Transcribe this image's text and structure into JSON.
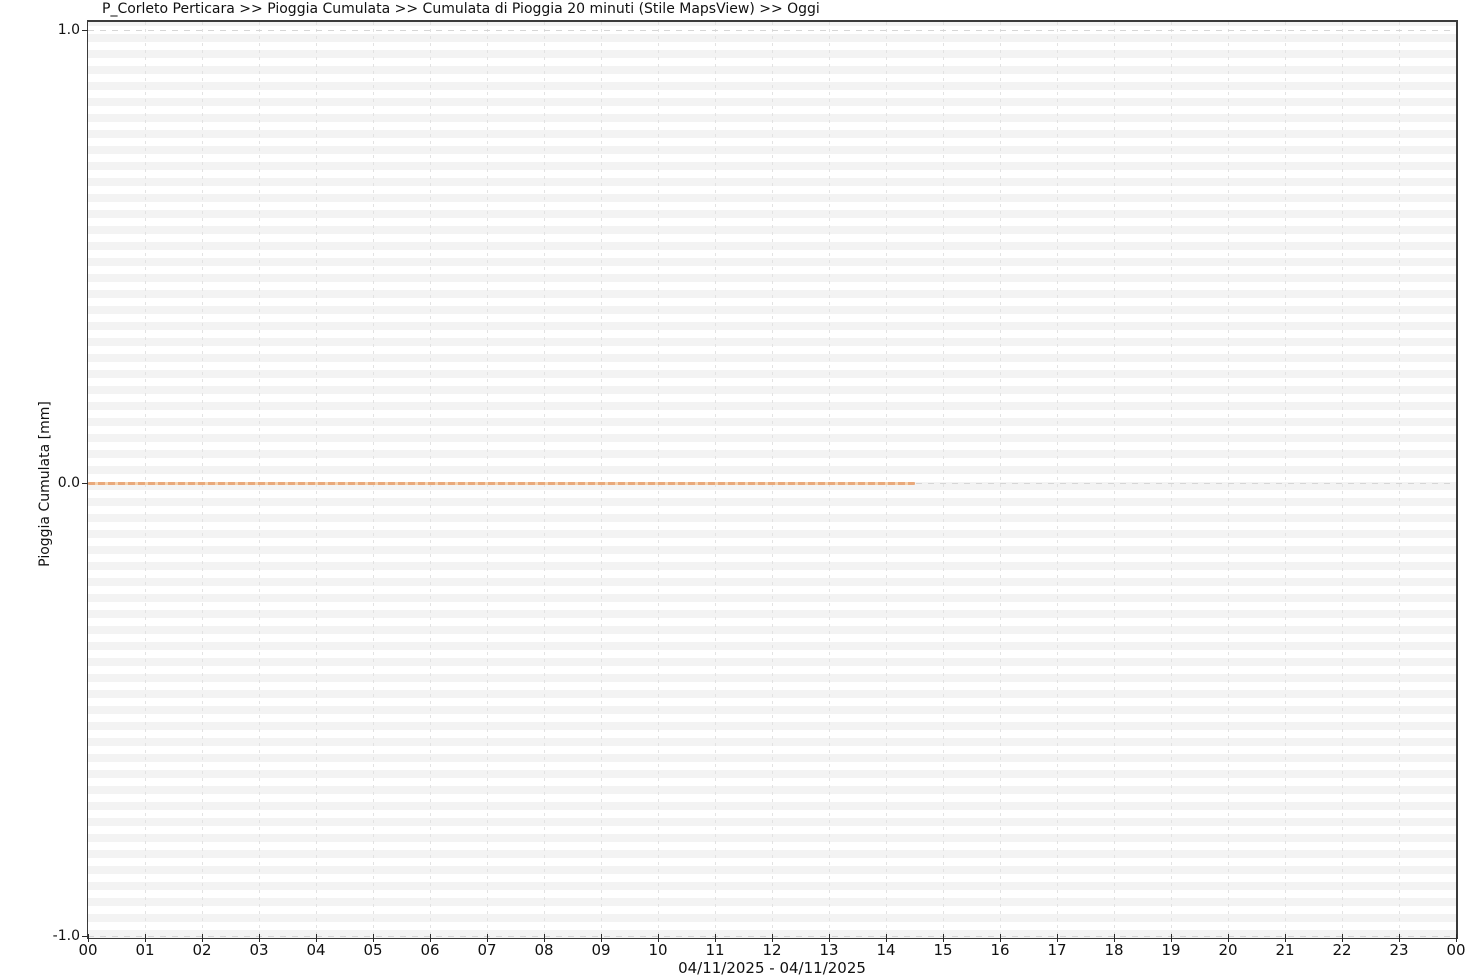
{
  "header": {
    "title": "P_Corleto Perticara >> Pioggia Cumulata >> Cumulata di Pioggia 20 minuti (Stile MapsView) >> Oggi"
  },
  "colors": {
    "series_line": "#eda97c",
    "series_line_light": "#f7d3ae",
    "grid": "#e2e2e2",
    "grid_major": "#d6d6d6",
    "stripe": "#f3f3f3",
    "axis_border": "#3a3a3a",
    "text": "#111111"
  },
  "chart_data": {
    "type": "line",
    "title": "P_Corleto Perticara >> Pioggia Cumulata >> Cumulata di Pioggia 20 minuti (Stile MapsView) >> Oggi",
    "xlabel": "04/11/2025 - 04/11/2025",
    "ylabel": "Pioggia Cumulata [mm]",
    "ylim": [
      -1.0,
      1.0
    ],
    "xlim_hours": [
      0,
      24
    ],
    "grid": true,
    "legend_position": "none",
    "y_ticks": [
      {
        "label": "1.0",
        "value": 1.0
      },
      {
        "label": "0.0",
        "value": 0.0
      },
      {
        "label": "-1.0",
        "value": -1.0
      }
    ],
    "x_tick_labels": [
      "00",
      "01",
      "02",
      "03",
      "04",
      "05",
      "06",
      "07",
      "08",
      "09",
      "10",
      "11",
      "12",
      "13",
      "14",
      "15",
      "16",
      "17",
      "18",
      "19",
      "20",
      "21",
      "22",
      "23",
      "00"
    ],
    "date_range_label": "04/11/2025 - 04/11/2025",
    "series": [
      {
        "name": "Cumulata di Pioggia 20 minuti",
        "color": "#eda97c",
        "style": "dashed",
        "x_start_hour": 0,
        "x_end_hour": 14.5,
        "constant_value": 0.0,
        "points": [
          {
            "time": "00:00",
            "value": 0.0
          },
          {
            "time": "14:30",
            "value": 0.0
          }
        ]
      }
    ]
  }
}
